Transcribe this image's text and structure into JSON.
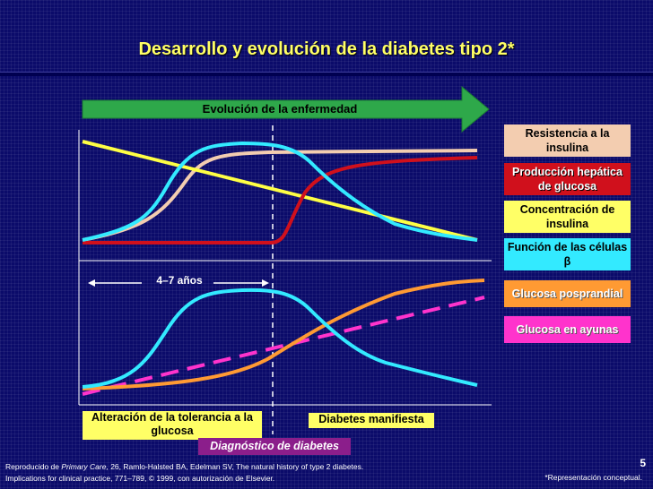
{
  "title": "Desarrollo y evolución de la diabetes tipo 2*",
  "arrow_label": "Evolución de la enfermedad",
  "legend": [
    {
      "key": "resistencia",
      "text": "Resistencia a la insulina",
      "color": "#f3cdb0"
    },
    {
      "key": "produccion",
      "text": "Producción hepática de glucosa",
      "color": "#d0101c"
    },
    {
      "key": "concentracion",
      "text": "Concentración de insulina",
      "color": "#ffff66"
    },
    {
      "key": "funcion",
      "text": "Función de las células β",
      "color": "#33eaff"
    },
    {
      "key": "posprandial",
      "text": "Glucosa posprandial",
      "color": "#ff9a33"
    },
    {
      "key": "ayunas",
      "text": "Glucosa en ayunas",
      "color": "#ff33cc"
    }
  ],
  "labels": {
    "years": "4–7 años",
    "alteracion": "Alteración de la tolerancia a la glucosa",
    "manifiesta": "Diabetes manifiesta",
    "diagnostico": "Diagnóstico de diabetes"
  },
  "reference": {
    "prefix": "Reproducido de ",
    "journal": "Primary Care,",
    "rest": " 26, Ramlo-Halsted BA, Edelman SV, The natural history of type 2 diabetes.",
    "line2": "Implications for clinical practice, 771–789, © 1999, con autorización de Elsevier."
  },
  "note": "*Representación conceptual.",
  "page_number": "5"
}
